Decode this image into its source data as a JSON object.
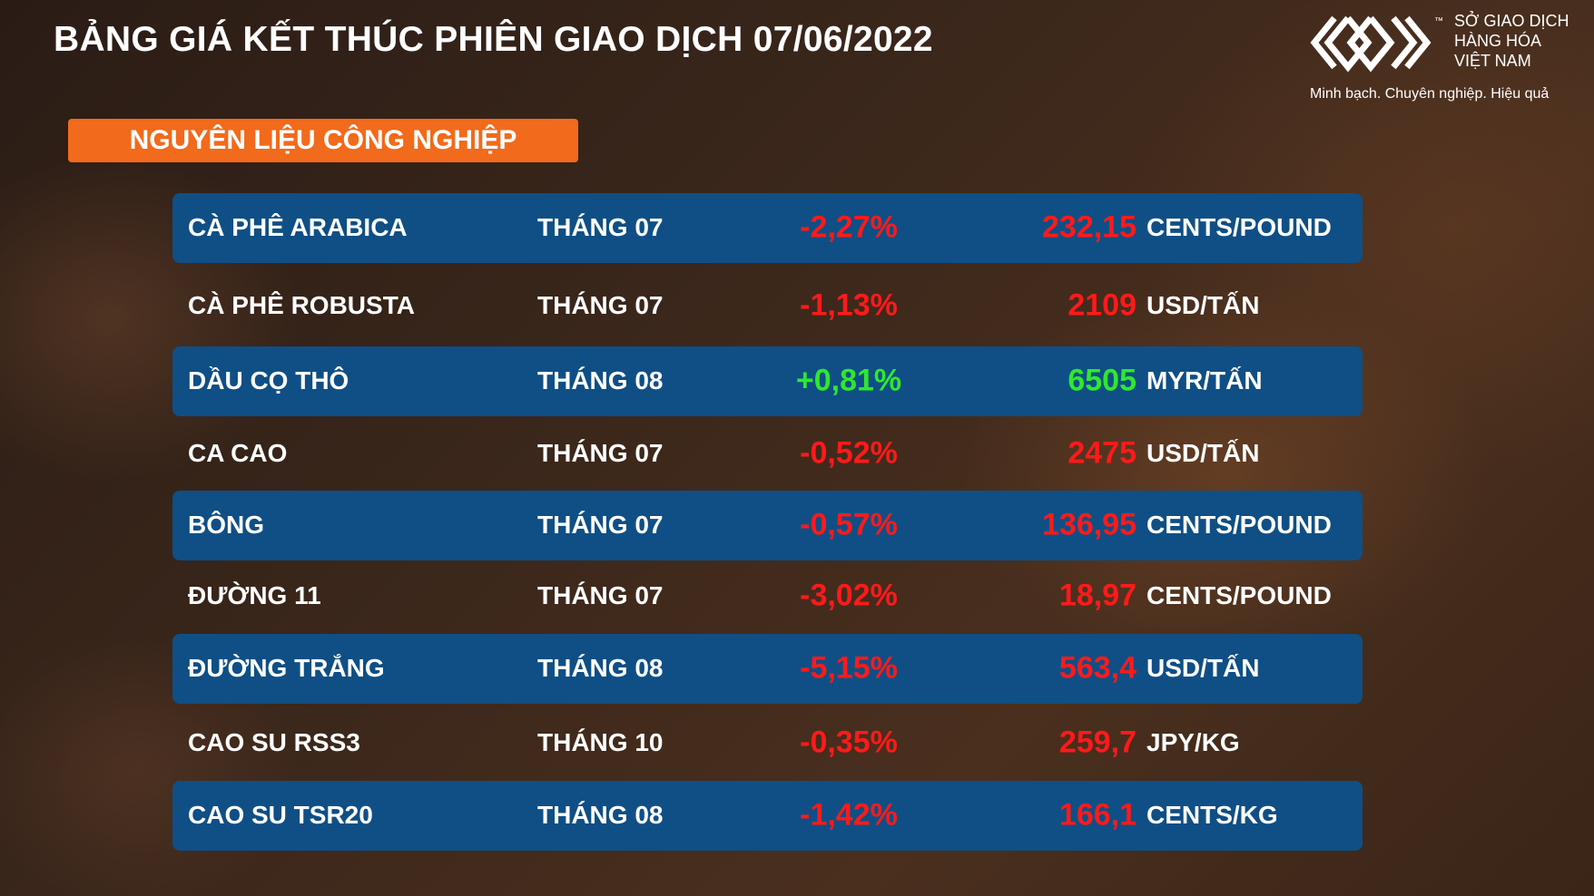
{
  "header": {
    "title": "BẢNG GIÁ KẾT THÚC PHIÊN GIAO DỊCH 07/06/2022"
  },
  "logo": {
    "tm": "™",
    "line1": "SỞ GIAO DỊCH",
    "line2": "HÀNG HÓA",
    "line3": "VIỆT NAM",
    "tagline": "Minh bạch. Chuyên nghiệp. Hiệu quả"
  },
  "section": "NGUYÊN LIỆU CÔNG NGHIỆP",
  "table": {
    "rows": [
      {
        "name": "CÀ PHÊ ARABICA",
        "month": "THÁNG 07",
        "change": "-2,27%",
        "price": "232,15",
        "unit": "CENTS/POUND",
        "color": "#ff1a1a"
      },
      {
        "name": "CÀ PHÊ ROBUSTA",
        "month": "THÁNG 07",
        "change": "-1,13%",
        "price": "2109",
        "unit": "USD/TẤN",
        "color": "#ff1a1a"
      },
      {
        "name": "DẦU CỌ THÔ",
        "month": "THÁNG 08",
        "change": "+0,81%",
        "price": "6505",
        "unit": "MYR/TẤN",
        "color": "#2ee82e"
      },
      {
        "name": "CA CAO",
        "month": "THÁNG 07",
        "change": "-0,52%",
        "price": "2475",
        "unit": "USD/TẤN",
        "color": "#ff1a1a"
      },
      {
        "name": "BÔNG",
        "month": "THÁNG 07",
        "change": "-0,57%",
        "price": "136,95",
        "unit": "CENTS/POUND",
        "color": "#ff1a1a"
      },
      {
        "name": "ĐƯỜNG 11",
        "month": "THÁNG 07",
        "change": "-3,02%",
        "price": "18,97",
        "unit": "CENTS/POUND",
        "color": "#ff1a1a"
      },
      {
        "name": "ĐƯỜNG TRẮNG",
        "month": "THÁNG 08",
        "change": "-5,15%",
        "price": "563,4",
        "unit": "USD/TẤN",
        "color": "#ff1a1a"
      },
      {
        "name": "CAO SU RSS3",
        "month": "THÁNG 10",
        "change": "-0,35%",
        "price": "259,7",
        "unit": "JPY/KG",
        "color": "#ff1a1a"
      },
      {
        "name": "CAO SU TSR20",
        "month": "THÁNG 08",
        "change": "-1,42%",
        "price": "166,1",
        "unit": "CENTS/KG",
        "color": "#ff1a1a"
      }
    ]
  }
}
